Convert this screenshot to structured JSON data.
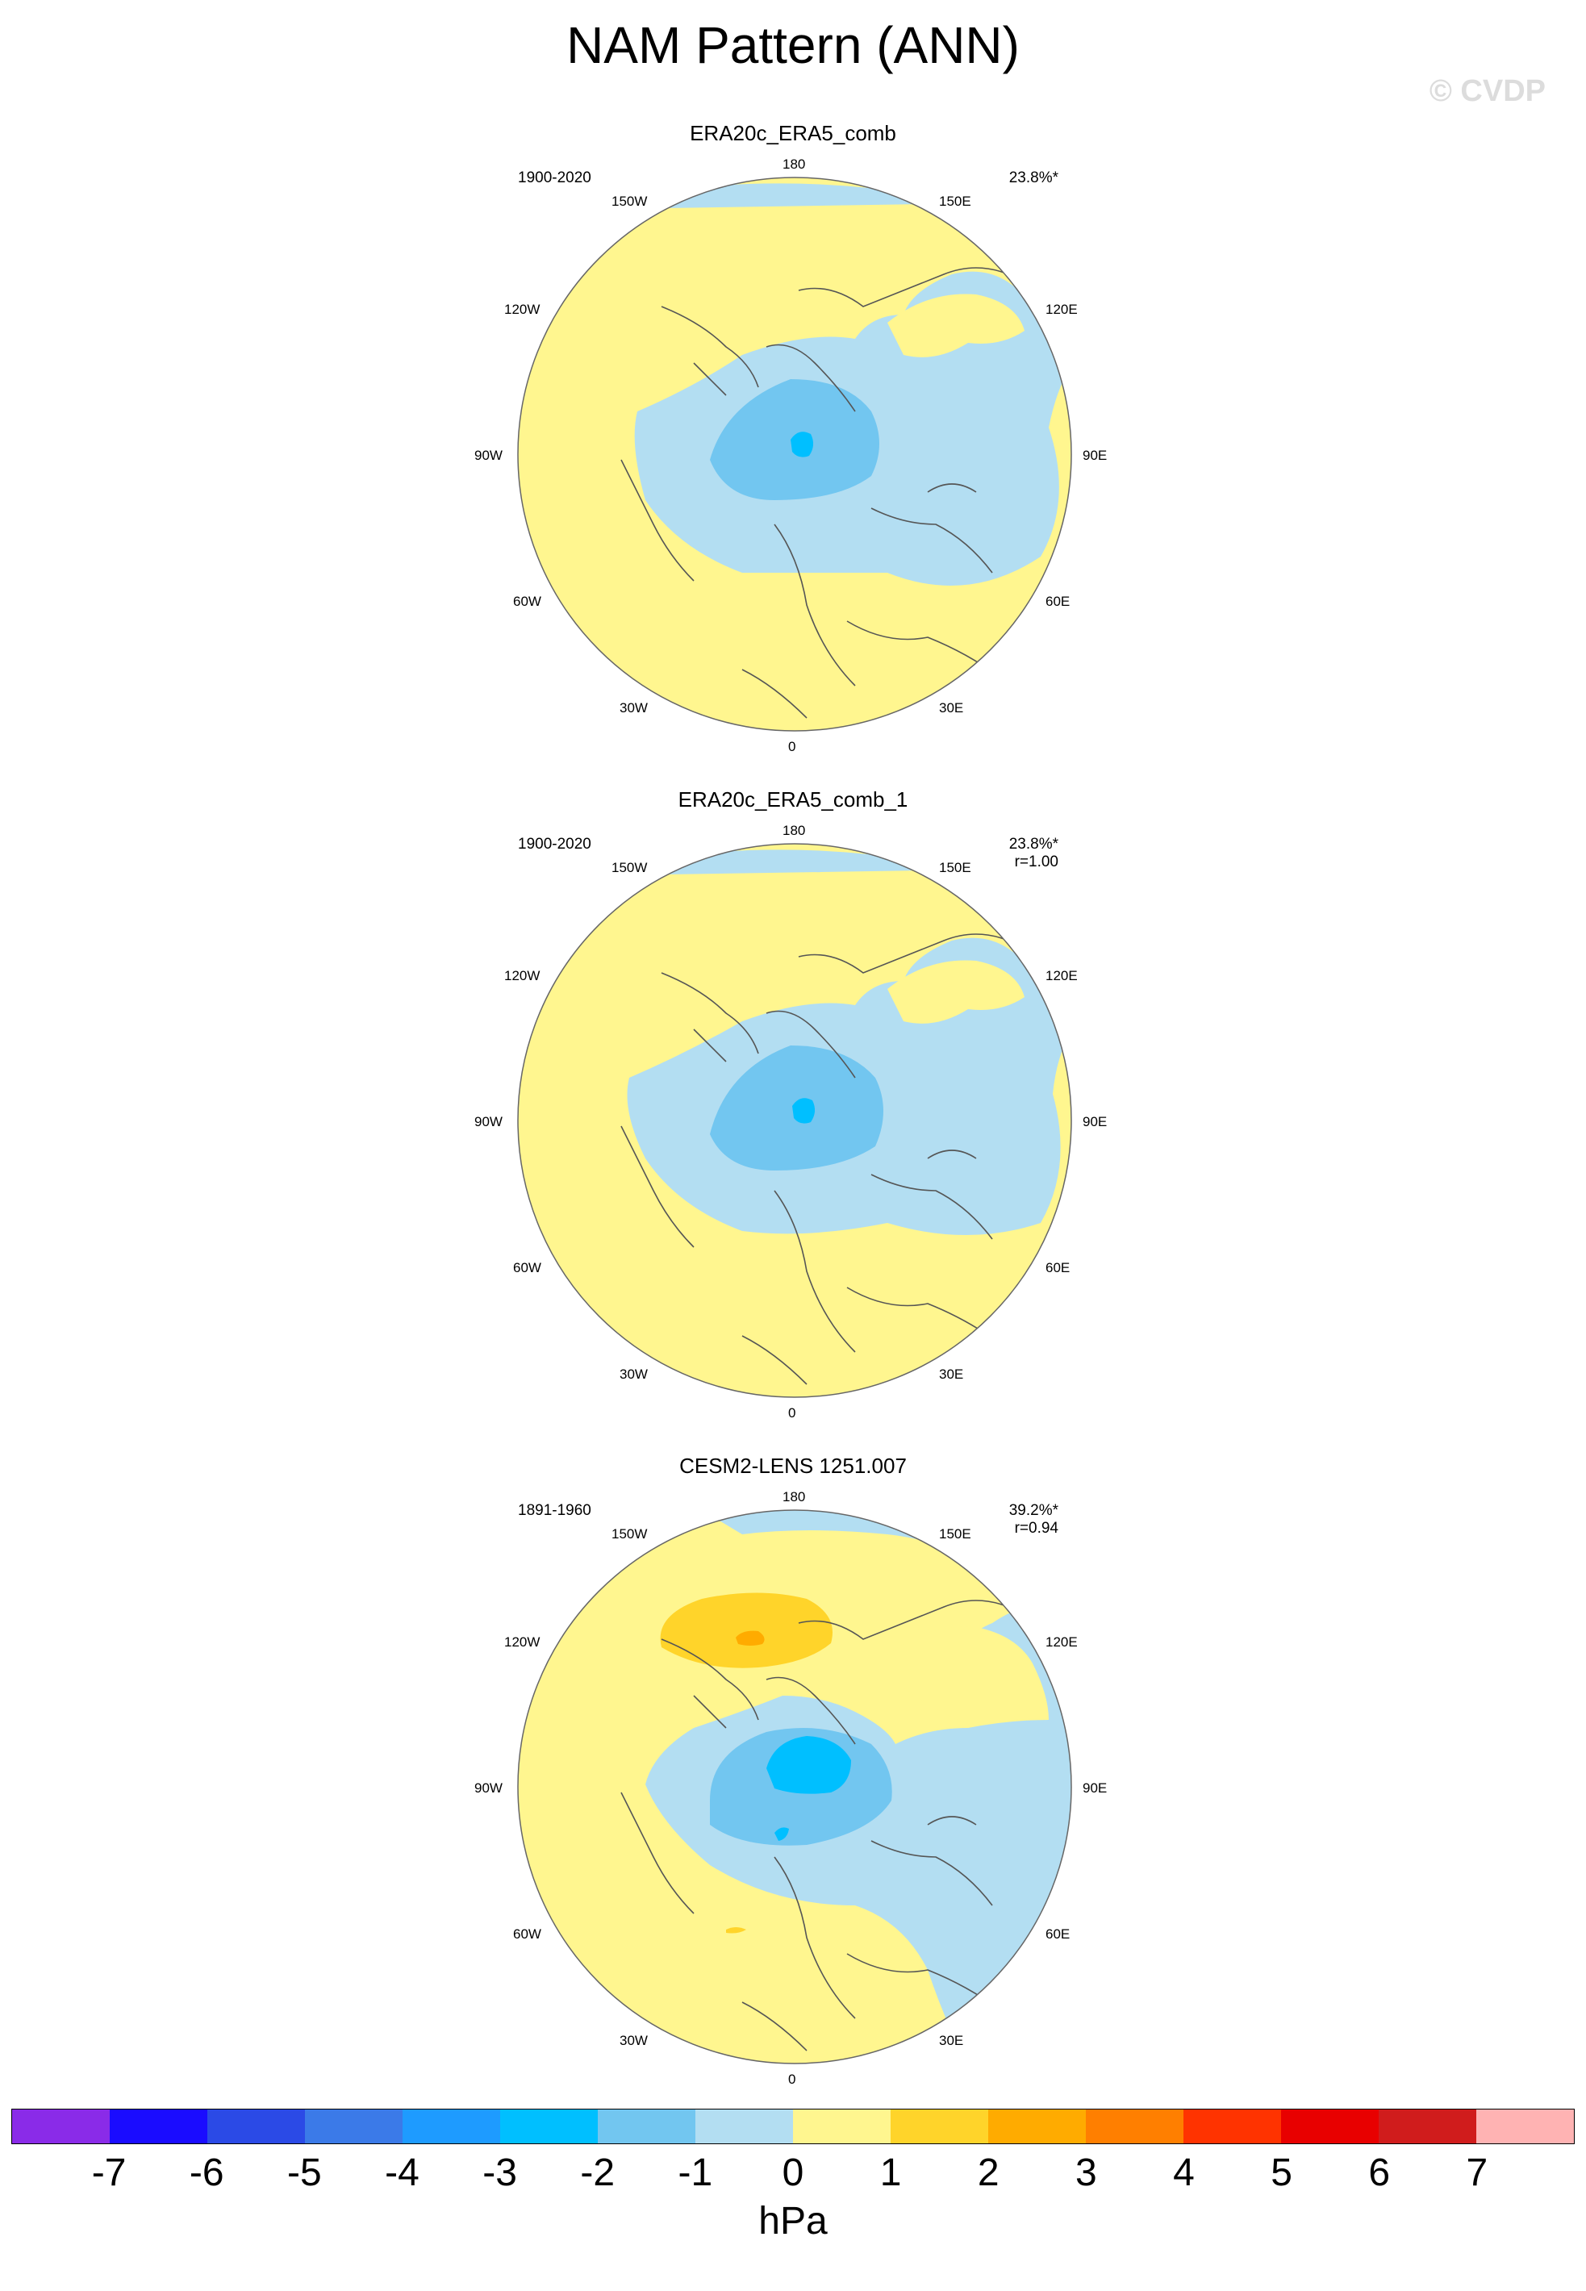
{
  "title": "NAM Pattern (ANN)",
  "watermark": "© CVDP",
  "longitude_labels": [
    "180",
    "150E",
    "120E",
    "90E",
    "60E",
    "30E",
    "0",
    "30W",
    "60W",
    "90W",
    "120W",
    "150W"
  ],
  "panels": [
    {
      "title": "ERA20c_ERA5_comb",
      "period": "1900-2020",
      "pct_variance": "23.8%*",
      "correlation": ""
    },
    {
      "title": "ERA20c_ERA5_comb_1",
      "period": "1900-2020",
      "pct_variance": "23.8%*",
      "correlation": "r=1.00"
    },
    {
      "title": "CESM2-LENS 1251.007",
      "period": "1891-1960",
      "pct_variance": "39.2%*",
      "correlation": "r=0.94"
    }
  ],
  "colorbar": {
    "units": "hPa",
    "labels": [
      "-7",
      "-6",
      "-5",
      "-4",
      "-3",
      "-2",
      "-1",
      "0",
      "1",
      "2",
      "3",
      "4",
      "5",
      "6",
      "7"
    ],
    "colors": [
      "#8a2be8",
      "#1a0cff",
      "#2b4ae6",
      "#3b7ae8",
      "#1e9bff",
      "#00bfff",
      "#72c6f0",
      "#b3def2",
      "#fff68f",
      "#ffd42a",
      "#ffab00",
      "#ff7f00",
      "#ff3300",
      "#e80000",
      "#d01c1c",
      "#ffb3b3"
    ]
  },
  "field_colors": {
    "land_contour": "#555555",
    "neg1": "#b3def2",
    "neg2": "#72c6f0",
    "neg3": "#00bfff",
    "pos1": "#fff68f",
    "pos2": "#ffd42a",
    "pos3": "#ffab00"
  }
}
